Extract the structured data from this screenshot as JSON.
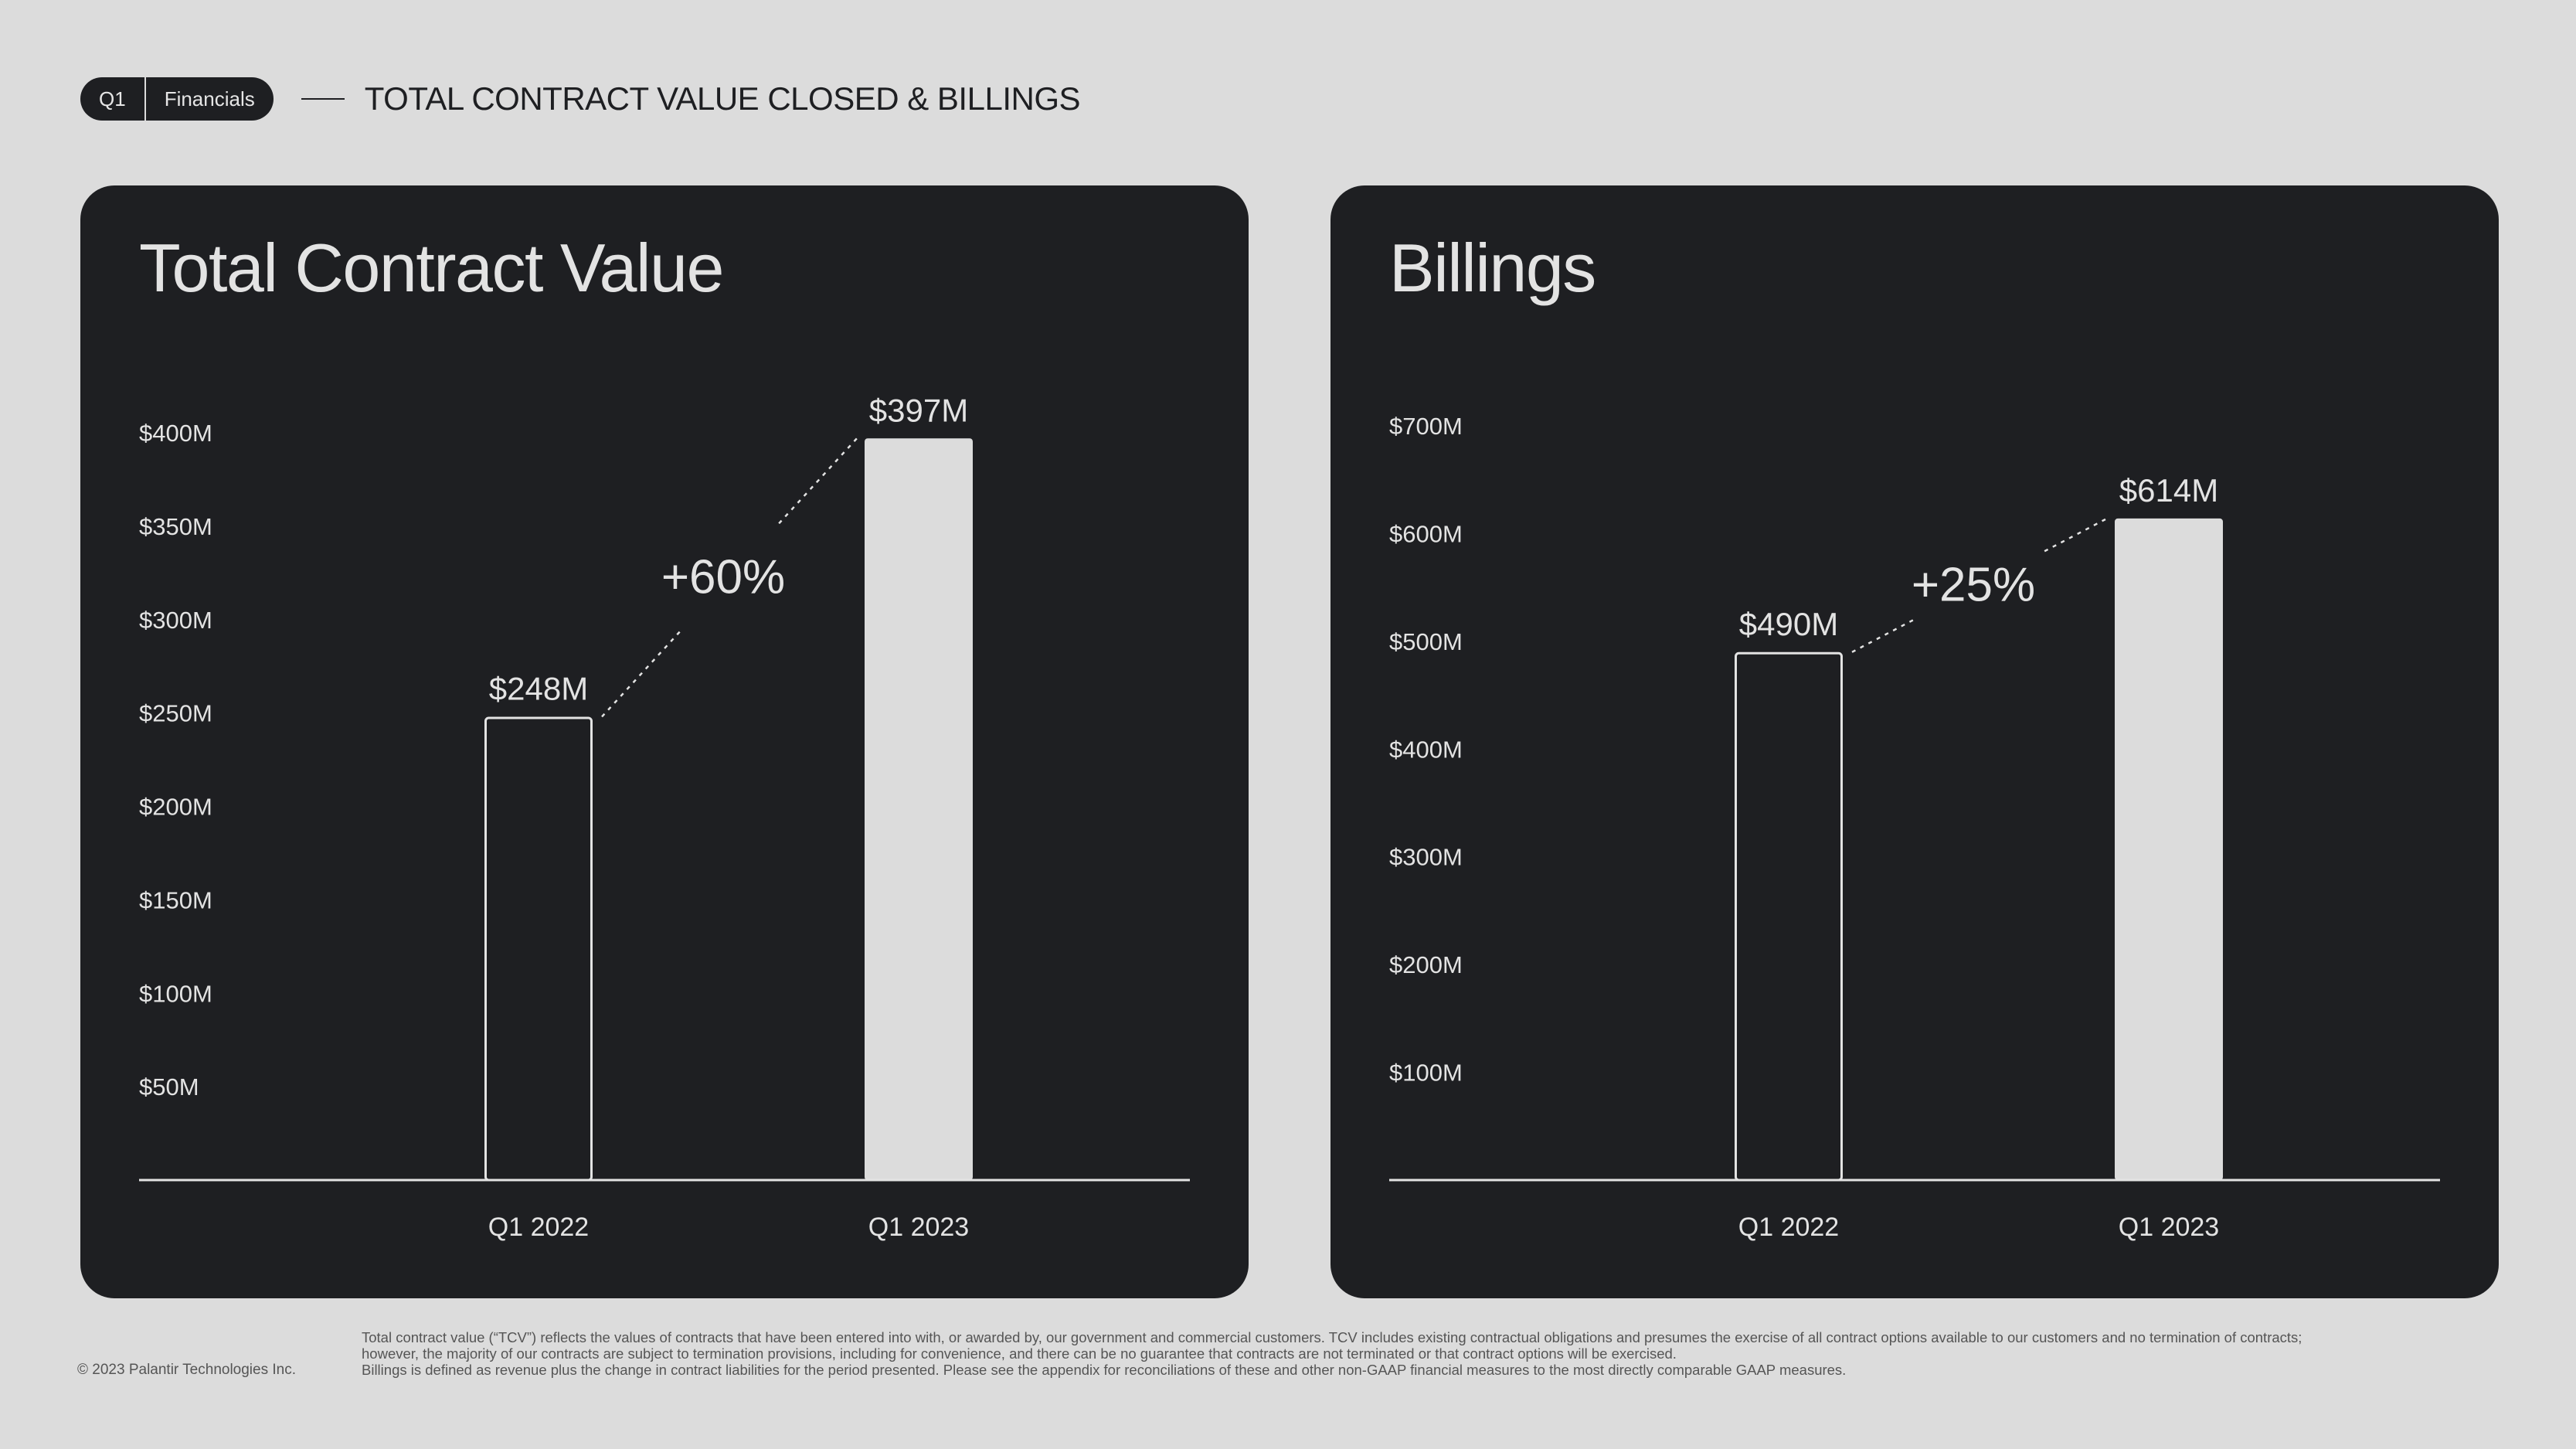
{
  "header": {
    "quarter": "Q1",
    "section": "Financials",
    "title": "TOTAL CONTRACT VALUE CLOSED & BILLINGS"
  },
  "colors": {
    "background": "#dcdcdc",
    "card": "#1e1f22",
    "bar_prior": "#1e1f22",
    "bar_current": "#dcdcdc",
    "text_light": "#e3e3e3"
  },
  "chart_data": [
    {
      "type": "bar",
      "title": "Total Contract Value",
      "categories": [
        "Q1 2022",
        "Q1 2023"
      ],
      "values": [
        248,
        397
      ],
      "value_labels": [
        "$248M",
        "$397M"
      ],
      "growth_label": "+60%",
      "y_ticks": [
        50,
        100,
        150,
        200,
        250,
        300,
        350,
        400
      ],
      "y_tick_labels": [
        "$50M",
        "$100M",
        "$150M",
        "$200M",
        "$250M",
        "$300M",
        "$350M",
        "$400M"
      ],
      "ylim": [
        0,
        400
      ],
      "bar_styles": [
        "outline",
        "filled"
      ],
      "grid": false,
      "legend": "none"
    },
    {
      "type": "bar",
      "title": "Billings",
      "categories": [
        "Q1 2022",
        "Q1 2023"
      ],
      "values": [
        490,
        614
      ],
      "value_labels": [
        "$490M",
        "$614M"
      ],
      "growth_label": "+25%",
      "y_ticks": [
        100,
        200,
        300,
        400,
        500,
        600,
        700
      ],
      "y_tick_labels": [
        "$100M",
        "$200M",
        "$300M",
        "$400M",
        "$500M",
        "$600M",
        "$700M"
      ],
      "ylim": [
        0,
        700
      ],
      "bar_styles": [
        "outline",
        "filled"
      ],
      "grid": false,
      "legend": "none"
    }
  ],
  "footer": {
    "copyright": "© 2023 Palantir Technologies Inc.",
    "note_line1": "Total contract value (“TCV”) reflects the values of contracts that have been entered into with, or awarded by, our government and commercial customers. TCV includes existing contractual obligations and presumes the exercise of all contract options available to our customers and no termination of contracts;",
    "note_line2": "however, the majority of our contracts are subject to termination provisions, including for convenience, and there can be no guarantee that contracts are not terminated or that contract options will be exercised.",
    "note_line3": "Billings is defined as revenue plus the change in contract liabilities for the period presented. Please see the appendix for reconciliations of these and other non-GAAP financial measures to the most directly comparable GAAP measures."
  }
}
